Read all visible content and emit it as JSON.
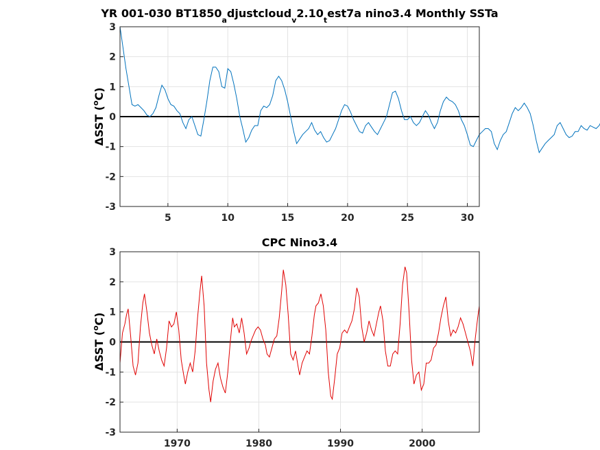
{
  "chart_data": [
    {
      "type": "line",
      "title_parts": [
        "YR 001-030 BT1850",
        "a",
        "djustcloud",
        "v",
        "2.10",
        "t",
        "est7a nino3.4 Monthly SSTa"
      ],
      "ylabel": "ΔSST (°C)",
      "ylabel_parts": [
        "ΔSST (",
        "o",
        "C)"
      ],
      "xlim": [
        1,
        31
      ],
      "ylim": [
        -3,
        3
      ],
      "xticks": [
        5,
        10,
        15,
        20,
        25,
        30
      ],
      "yticks": [
        -3,
        -2,
        -1,
        0,
        1,
        2,
        3
      ],
      "grid": true,
      "zero_line": true,
      "color": "#0072BD",
      "x_start": 1,
      "x_step": 0.25,
      "values": [
        3.0,
        2.3,
        1.6,
        1.0,
        0.4,
        0.35,
        0.4,
        0.3,
        0.2,
        0.05,
        0.0,
        0.1,
        0.3,
        0.7,
        1.05,
        0.9,
        0.6,
        0.4,
        0.35,
        0.2,
        0.1,
        -0.2,
        -0.4,
        -0.1,
        0.0,
        -0.3,
        -0.6,
        -0.65,
        -0.1,
        0.5,
        1.2,
        1.65,
        1.65,
        1.5,
        1.0,
        0.95,
        1.6,
        1.5,
        1.1,
        0.6,
        0.0,
        -0.4,
        -0.85,
        -0.7,
        -0.45,
        -0.3,
        -0.3,
        0.2,
        0.35,
        0.3,
        0.4,
        0.7,
        1.2,
        1.35,
        1.2,
        0.9,
        0.5,
        0.0,
        -0.5,
        -0.9,
        -0.75,
        -0.6,
        -0.5,
        -0.4,
        -0.2,
        -0.45,
        -0.6,
        -0.5,
        -0.7,
        -0.85,
        -0.8,
        -0.6,
        -0.4,
        -0.1,
        0.2,
        0.4,
        0.35,
        0.15,
        -0.1,
        -0.3,
        -0.5,
        -0.55,
        -0.3,
        -0.2,
        -0.35,
        -0.5,
        -0.6,
        -0.4,
        -0.2,
        0.0,
        0.4,
        0.8,
        0.85,
        0.6,
        0.2,
        -0.1,
        -0.1,
        0.0,
        -0.2,
        -0.3,
        -0.2,
        0.0,
        0.2,
        0.05,
        -0.2,
        -0.4,
        -0.2,
        0.2,
        0.5,
        0.65,
        0.55,
        0.5,
        0.4,
        0.2,
        -0.1,
        -0.3,
        -0.6,
        -0.95,
        -1.0,
        -0.8,
        -0.6,
        -0.5,
        -0.4,
        -0.4,
        -0.5,
        -0.9,
        -1.1,
        -0.8,
        -0.6,
        -0.5,
        -0.2,
        0.1,
        0.3,
        0.2,
        0.3,
        0.45,
        0.3,
        0.1,
        -0.3,
        -0.8,
        -1.2,
        -1.05,
        -0.9,
        -0.8,
        -0.7,
        -0.6,
        -0.3,
        -0.2,
        -0.4,
        -0.6,
        -0.7,
        -0.65,
        -0.5,
        -0.5,
        -0.3,
        -0.4,
        -0.45,
        -0.3,
        -0.35,
        -0.4,
        -0.3,
        -0.1,
        0.1,
        0.4,
        0.45
      ]
    },
    {
      "type": "line",
      "title": "CPC Nino3.4",
      "ylabel": "ΔSST (°C)",
      "ylabel_parts": [
        "ΔSST (",
        "o",
        "C)"
      ],
      "xlim": [
        1963,
        2007
      ],
      "ylim": [
        -3,
        3
      ],
      "xticks": [
        1970,
        1980,
        1990,
        2000
      ],
      "yticks": [
        -3,
        -2,
        -1,
        0,
        1,
        2,
        3
      ],
      "grid": true,
      "zero_line": true,
      "color": "#E00000",
      "points": [
        [
          1963.0,
          -0.7
        ],
        [
          1963.3,
          0.3
        ],
        [
          1963.6,
          0.6
        ],
        [
          1963.8,
          0.9
        ],
        [
          1964.0,
          1.1
        ],
        [
          1964.3,
          0.2
        ],
        [
          1964.6,
          -0.8
        ],
        [
          1964.9,
          -1.1
        ],
        [
          1965.2,
          -0.7
        ],
        [
          1965.5,
          0.5
        ],
        [
          1965.8,
          1.3
        ],
        [
          1966.0,
          1.6
        ],
        [
          1966.3,
          1.0
        ],
        [
          1966.6,
          0.3
        ],
        [
          1966.9,
          -0.1
        ],
        [
          1967.2,
          -0.4
        ],
        [
          1967.5,
          0.1
        ],
        [
          1967.8,
          -0.3
        ],
        [
          1968.1,
          -0.6
        ],
        [
          1968.4,
          -0.8
        ],
        [
          1968.7,
          -0.2
        ],
        [
          1969.0,
          0.7
        ],
        [
          1969.3,
          0.5
        ],
        [
          1969.6,
          0.6
        ],
        [
          1969.9,
          1.0
        ],
        [
          1970.2,
          0.4
        ],
        [
          1970.5,
          -0.6
        ],
        [
          1970.8,
          -1.1
        ],
        [
          1971.0,
          -1.4
        ],
        [
          1971.3,
          -1.0
        ],
        [
          1971.6,
          -0.7
        ],
        [
          1971.9,
          -1.0
        ],
        [
          1972.2,
          -0.3
        ],
        [
          1972.5,
          0.8
        ],
        [
          1972.8,
          1.7
        ],
        [
          1973.0,
          2.2
        ],
        [
          1973.3,
          1.2
        ],
        [
          1973.6,
          -0.7
        ],
        [
          1973.9,
          -1.6
        ],
        [
          1974.1,
          -2.0
        ],
        [
          1974.4,
          -1.3
        ],
        [
          1974.7,
          -0.9
        ],
        [
          1975.0,
          -0.7
        ],
        [
          1975.3,
          -1.2
        ],
        [
          1975.6,
          -1.5
        ],
        [
          1975.9,
          -1.7
        ],
        [
          1976.2,
          -1.0
        ],
        [
          1976.5,
          0.0
        ],
        [
          1976.8,
          0.8
        ],
        [
          1977.0,
          0.5
        ],
        [
          1977.3,
          0.6
        ],
        [
          1977.6,
          0.3
        ],
        [
          1977.9,
          0.8
        ],
        [
          1978.2,
          0.3
        ],
        [
          1978.5,
          -0.4
        ],
        [
          1978.8,
          -0.2
        ],
        [
          1979.0,
          0.0
        ],
        [
          1979.3,
          0.2
        ],
        [
          1979.6,
          0.4
        ],
        [
          1979.9,
          0.5
        ],
        [
          1980.2,
          0.4
        ],
        [
          1980.5,
          0.1
        ],
        [
          1980.8,
          -0.1
        ],
        [
          1981.0,
          -0.4
        ],
        [
          1981.3,
          -0.5
        ],
        [
          1981.6,
          -0.2
        ],
        [
          1981.9,
          0.1
        ],
        [
          1982.2,
          0.2
        ],
        [
          1982.5,
          0.8
        ],
        [
          1982.8,
          1.7
        ],
        [
          1983.0,
          2.4
        ],
        [
          1983.3,
          1.9
        ],
        [
          1983.6,
          0.9
        ],
        [
          1983.9,
          -0.4
        ],
        [
          1984.2,
          -0.6
        ],
        [
          1984.5,
          -0.3
        ],
        [
          1984.8,
          -0.8
        ],
        [
          1985.0,
          -1.1
        ],
        [
          1985.3,
          -0.7
        ],
        [
          1985.6,
          -0.5
        ],
        [
          1985.9,
          -0.3
        ],
        [
          1986.2,
          -0.4
        ],
        [
          1986.5,
          0.2
        ],
        [
          1986.8,
          0.9
        ],
        [
          1987.0,
          1.2
        ],
        [
          1987.3,
          1.3
        ],
        [
          1987.6,
          1.6
        ],
        [
          1987.9,
          1.2
        ],
        [
          1988.2,
          0.4
        ],
        [
          1988.5,
          -1.0
        ],
        [
          1988.8,
          -1.8
        ],
        [
          1989.0,
          -1.9
        ],
        [
          1989.3,
          -1.2
        ],
        [
          1989.6,
          -0.4
        ],
        [
          1989.9,
          -0.2
        ],
        [
          1990.2,
          0.3
        ],
        [
          1990.5,
          0.4
        ],
        [
          1990.8,
          0.3
        ],
        [
          1991.1,
          0.5
        ],
        [
          1991.4,
          0.7
        ],
        [
          1991.7,
          1.1
        ],
        [
          1992.0,
          1.8
        ],
        [
          1992.3,
          1.5
        ],
        [
          1992.6,
          0.5
        ],
        [
          1992.9,
          0.0
        ],
        [
          1993.2,
          0.3
        ],
        [
          1993.5,
          0.7
        ],
        [
          1993.8,
          0.4
        ],
        [
          1994.1,
          0.2
        ],
        [
          1994.4,
          0.6
        ],
        [
          1994.7,
          1.0
        ],
        [
          1994.9,
          1.2
        ],
        [
          1995.2,
          0.7
        ],
        [
          1995.5,
          -0.3
        ],
        [
          1995.8,
          -0.8
        ],
        [
          1996.1,
          -0.8
        ],
        [
          1996.4,
          -0.4
        ],
        [
          1996.7,
          -0.3
        ],
        [
          1997.0,
          -0.4
        ],
        [
          1997.3,
          0.6
        ],
        [
          1997.6,
          1.9
        ],
        [
          1997.9,
          2.5
        ],
        [
          1998.1,
          2.3
        ],
        [
          1998.4,
          1.0
        ],
        [
          1998.7,
          -0.6
        ],
        [
          1999.0,
          -1.4
        ],
        [
          1999.3,
          -1.1
        ],
        [
          1999.6,
          -1.0
        ],
        [
          1999.9,
          -1.6
        ],
        [
          2000.2,
          -1.4
        ],
        [
          2000.5,
          -0.7
        ],
        [
          2000.8,
          -0.7
        ],
        [
          2001.1,
          -0.6
        ],
        [
          2001.4,
          -0.2
        ],
        [
          2001.7,
          -0.1
        ],
        [
          2002.0,
          0.3
        ],
        [
          2002.3,
          0.8
        ],
        [
          2002.6,
          1.2
        ],
        [
          2002.9,
          1.5
        ],
        [
          2003.2,
          0.7
        ],
        [
          2003.5,
          0.2
        ],
        [
          2003.8,
          0.4
        ],
        [
          2004.1,
          0.3
        ],
        [
          2004.4,
          0.5
        ],
        [
          2004.7,
          0.8
        ],
        [
          2005.0,
          0.6
        ],
        [
          2005.3,
          0.3
        ],
        [
          2005.6,
          0.0
        ],
        [
          2005.9,
          -0.3
        ],
        [
          2006.2,
          -0.8
        ],
        [
          2006.5,
          0.1
        ],
        [
          2006.8,
          0.8
        ],
        [
          2007.0,
          1.2
        ]
      ]
    }
  ]
}
